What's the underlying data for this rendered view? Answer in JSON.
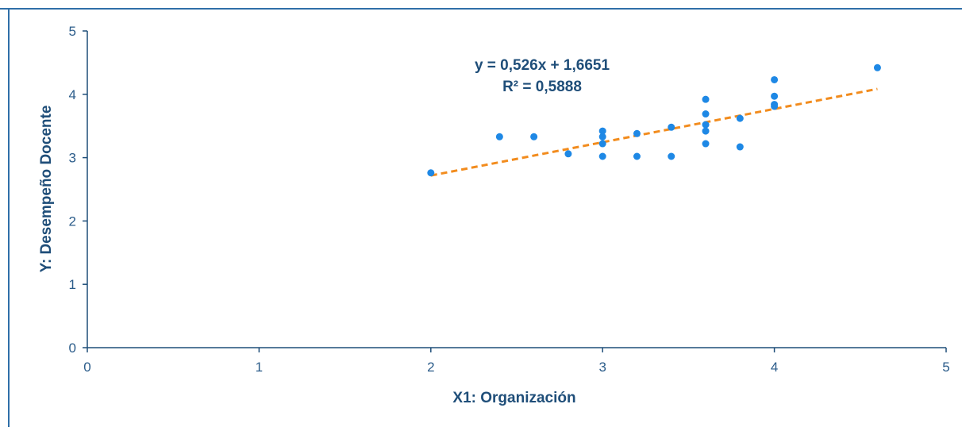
{
  "chart_data": {
    "type": "scatter",
    "xlabel": "X1: Organización",
    "ylabel": "Y: Desempeño Docente",
    "xlim": [
      0,
      5
    ],
    "ylim": [
      0,
      5
    ],
    "xticks": [
      0,
      1,
      2,
      3,
      4,
      5
    ],
    "yticks": [
      0,
      1,
      2,
      3,
      4,
      5
    ],
    "grid": false,
    "series": [
      {
        "points": [
          [
            2.0,
            2.76
          ],
          [
            2.4,
            3.33
          ],
          [
            2.6,
            3.33
          ],
          [
            2.8,
            3.06
          ],
          [
            3.0,
            3.42
          ],
          [
            3.0,
            3.33
          ],
          [
            3.0,
            3.22
          ],
          [
            3.0,
            3.02
          ],
          [
            3.2,
            3.38
          ],
          [
            3.2,
            3.02
          ],
          [
            3.4,
            3.48
          ],
          [
            3.4,
            3.02
          ],
          [
            3.6,
            3.92
          ],
          [
            3.6,
            3.69
          ],
          [
            3.6,
            3.52
          ],
          [
            3.6,
            3.42
          ],
          [
            3.6,
            3.22
          ],
          [
            3.8,
            3.62
          ],
          [
            3.8,
            3.17
          ],
          [
            4.0,
            4.23
          ],
          [
            4.0,
            3.97
          ],
          [
            4.0,
            3.84
          ],
          [
            4.0,
            3.81
          ],
          [
            4.6,
            4.42
          ]
        ]
      }
    ],
    "trendline": {
      "type": "linear",
      "slope": 0.526,
      "intercept": 1.6651,
      "x_range": [
        2.0,
        4.6
      ],
      "equation": "y = 0,526x + 1,6651",
      "r_squared": "R² = 0,5888"
    },
    "colors": {
      "points": "#1e88e5",
      "trendline": "#f28c1e",
      "axis": "#1f4e79",
      "frame": "#2f6fa8"
    }
  }
}
